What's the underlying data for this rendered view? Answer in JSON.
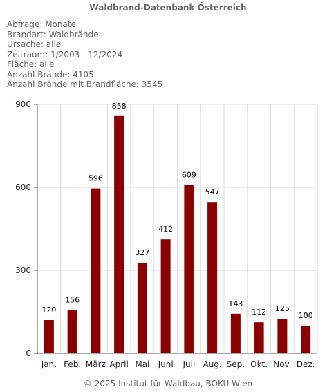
{
  "header": {
    "title": "Waldbrand-Datenbank Österreich"
  },
  "info_lines": [
    "Abfrage: Monate",
    "Brandart: Waldbrände",
    "Ursache: alle",
    "Zeitraum: 1/2003 - 12/2024",
    "Fläche: alle",
    "Anzahl Brände: 4105",
    "Anzahl Brände mit Brandfläche: 3545"
  ],
  "footer": {
    "credit": "© 2025 Institut für Waldbau, BOKU Wien"
  },
  "chart_data": {
    "type": "bar",
    "categories": [
      "Jan.",
      "Feb.",
      "März",
      "April",
      "Mai",
      "Juni",
      "Juli",
      "Aug.",
      "Sep.",
      "Okt.",
      "Nov.",
      "Dez."
    ],
    "values": [
      120,
      156,
      596,
      858,
      327,
      412,
      609,
      547,
      143,
      112,
      125,
      100
    ],
    "ylim": [
      0,
      900
    ],
    "yticks": [
      0,
      300,
      600,
      900
    ],
    "grid": true,
    "bar_color": "#8b0000",
    "grid_color": "#dddddd"
  }
}
